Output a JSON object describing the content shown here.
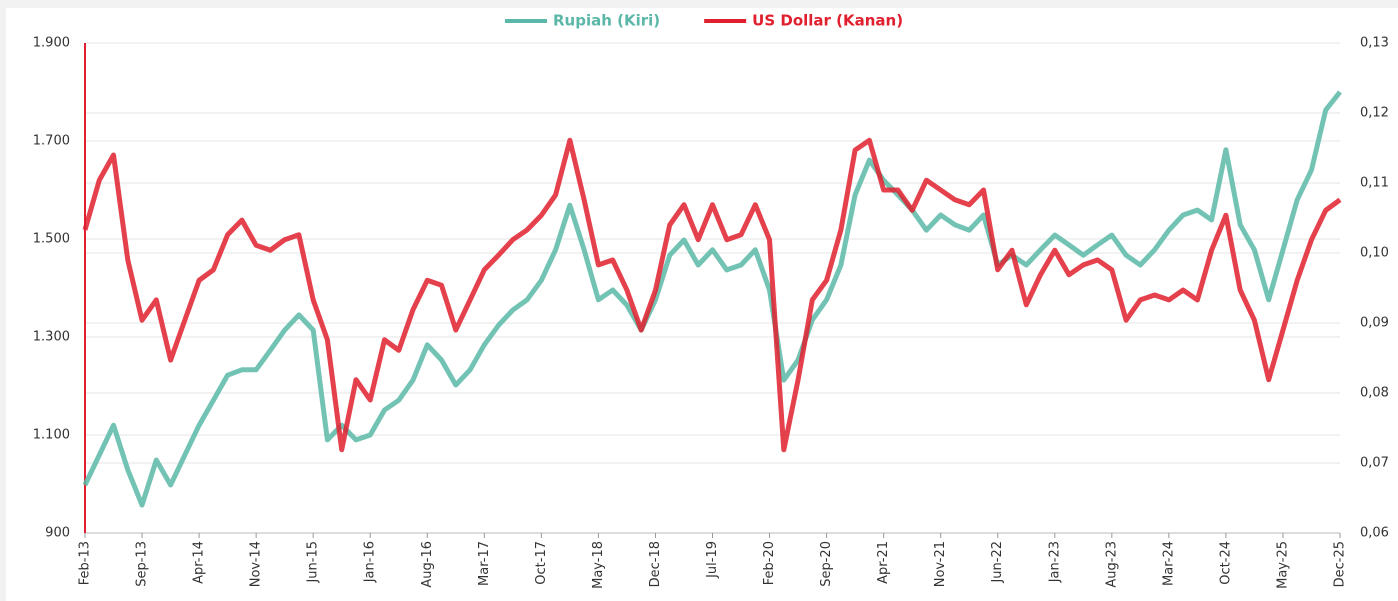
{
  "chart_data": {
    "type": "line",
    "categories": [
      "Feb-13",
      null,
      null,
      null,
      "Sep-13",
      null,
      null,
      null,
      "Apr-14",
      null,
      null,
      null,
      "Nov-14",
      null,
      null,
      null,
      "Jun-15",
      null,
      null,
      null,
      "Jan-16",
      null,
      null,
      null,
      "Aug-16",
      null,
      null,
      null,
      "Mar-17",
      null,
      null,
      null,
      "Oct-17",
      null,
      null,
      null,
      "May-18",
      null,
      null,
      null,
      "Dec-18",
      null,
      null,
      null,
      "Jul-19",
      null,
      null,
      null,
      "Feb-20",
      null,
      null,
      null,
      "Sep-20",
      null,
      null,
      null,
      "Apr-21",
      null,
      null,
      null,
      "Nov-21",
      null,
      null,
      null,
      "Jun-22",
      null,
      null,
      null,
      "Jan-23",
      null,
      null,
      null,
      "Aug-23",
      null,
      null,
      null,
      "Mar-24",
      null,
      null,
      null,
      "Oct-24",
      null,
      null,
      null,
      "May-25",
      null,
      null,
      null,
      "Dec-25"
    ],
    "series": [
      {
        "name": "Rupiah (Kiri)",
        "color": "#5bb8a8",
        "axis": "y",
        "values": [
          998,
          1059,
          1120,
          1029,
          957,
          1049,
          998,
          1059,
          1120,
          1171,
          1222,
          1233,
          1233,
          1273,
          1314,
          1345,
          1314,
          1090,
          1120,
          1090,
          1100,
          1151,
          1171,
          1212,
          1284,
          1253,
          1202,
          1233,
          1284,
          1324,
          1355,
          1376,
          1416,
          1478,
          1569,
          1478,
          1376,
          1396,
          1365,
          1314,
          1376,
          1467,
          1498,
          1447,
          1478,
          1437,
          1447,
          1478,
          1396,
          1212,
          1253,
          1335,
          1376,
          1447,
          1590,
          1661,
          1620,
          1590,
          1559,
          1518,
          1549,
          1529,
          1518,
          1549,
          1447,
          1467,
          1447,
          1478,
          1508,
          1488,
          1467,
          1488,
          1508,
          1467,
          1447,
          1478,
          1518,
          1549,
          1559,
          1539,
          1682,
          1529,
          1478,
          1376,
          1478,
          1580,
          1641,
          1763,
          1800
        ]
      },
      {
        "name": "US Dollar (Kanan)",
        "color": "#e0202e",
        "axis": "y2",
        "values": [
          0.1033,
          0.1104,
          0.114,
          0.099,
          0.0904,
          0.0933,
          0.0847,
          0.0904,
          0.0961,
          0.0976,
          0.1026,
          0.1047,
          0.1011,
          0.1004,
          0.1019,
          0.1026,
          0.0933,
          0.0876,
          0.0719,
          0.0819,
          0.079,
          0.0876,
          0.0861,
          0.0919,
          0.0961,
          0.0954,
          0.089,
          0.0933,
          0.0976,
          0.0997,
          0.1019,
          0.1033,
          0.1054,
          0.1083,
          0.1161,
          0.1076,
          0.0983,
          0.099,
          0.0947,
          0.089,
          0.0947,
          0.104,
          0.1069,
          0.1019,
          0.1069,
          0.1019,
          0.1026,
          0.1069,
          0.1019,
          0.0719,
          0.0819,
          0.0933,
          0.0961,
          0.1033,
          0.1147,
          0.1161,
          0.109,
          0.109,
          0.1061,
          0.1104,
          0.109,
          0.1076,
          0.1069,
          0.109,
          0.0976,
          0.1004,
          0.0926,
          0.0969,
          0.1004,
          0.0969,
          0.0983,
          0.099,
          0.0976,
          0.0904,
          0.0933,
          0.094,
          0.0933,
          0.0947,
          0.0933,
          0.1004,
          0.1054,
          0.0947,
          0.0904,
          0.0819,
          0.089,
          0.0961,
          0.1019,
          0.1061,
          0.1076
        ]
      }
    ],
    "ylim": [
      900,
      1900
    ],
    "yticks": [
      {
        "value": 900,
        "label": "900"
      },
      {
        "value": 1100,
        "label": "1.100"
      },
      {
        "value": 1300,
        "label": "1.300"
      },
      {
        "value": 1500,
        "label": "1.500"
      },
      {
        "value": 1700,
        "label": "1.700"
      },
      {
        "value": 1900,
        "label": "1.900"
      }
    ],
    "y2lim": [
      0.06,
      0.13
    ],
    "y2ticks": [
      {
        "value": 0.06,
        "label": "0,06"
      },
      {
        "value": 0.07,
        "label": "0,07"
      },
      {
        "value": 0.08,
        "label": "0,08"
      },
      {
        "value": 0.09,
        "label": "0,09"
      },
      {
        "value": 0.1,
        "label": "0,10"
      },
      {
        "value": 0.11,
        "label": "0,11"
      },
      {
        "value": 0.12,
        "label": "0,12"
      },
      {
        "value": 0.13,
        "label": "0,13"
      }
    ],
    "grid": true,
    "legend": "top"
  }
}
